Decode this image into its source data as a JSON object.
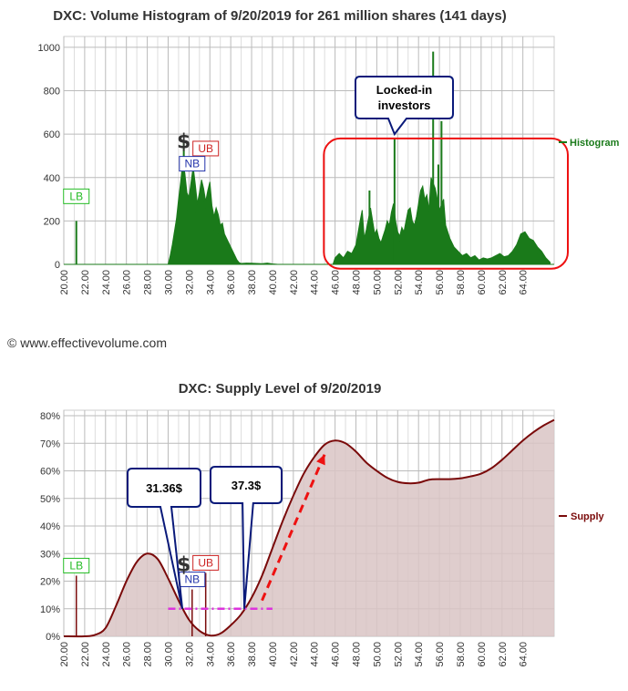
{
  "copyright": "© www.effectivevolume.com",
  "colors": {
    "histogram": "#1a7a1a",
    "supply_line": "#7a0a0a",
    "supply_fill": "#d9c4c4",
    "lb": "#22bb22",
    "ub": "#cc2222",
    "nb": "#2233aa",
    "callout_border": "#0a1a7a",
    "red_box": "#ee1111",
    "dashed_arrow": "#ee1111",
    "magenta_line": "#dd33dd",
    "grid": "#bbbbbb"
  },
  "chart_data": [
    {
      "type": "bar",
      "title": "DXC: Volume Histogram of 9/20/2019 for 261 million shares (141 days)",
      "legend": "Histogram",
      "legend_position": "right",
      "xlim": [
        20,
        67
      ],
      "ylim": [
        0,
        1050
      ],
      "x_ticks": [
        "20.00",
        "22.00",
        "24.00",
        "26.00",
        "28.00",
        "30.00",
        "32.00",
        "34.00",
        "36.00",
        "38.00",
        "40.00",
        "42.00",
        "44.00",
        "46.00",
        "48.00",
        "50.00",
        "52.00",
        "54.00",
        "56.00",
        "58.00",
        "60.00",
        "62.00",
        "64.00"
      ],
      "y_ticks": [
        "0",
        "200",
        "400",
        "600",
        "800",
        "1000"
      ],
      "grid": true,
      "spikes": [
        {
          "x": 21.2,
          "y": 200
        },
        {
          "x": 31.5,
          "y": 560
        },
        {
          "x": 51.7,
          "y": 580
        },
        {
          "x": 55.4,
          "y": 980
        },
        {
          "x": 56.2,
          "y": 660
        },
        {
          "x": 55.9,
          "y": 460
        },
        {
          "x": 49.3,
          "y": 340
        }
      ],
      "envelope": [
        [
          30.0,
          0
        ],
        [
          30.2,
          40
        ],
        [
          30.4,
          90
        ],
        [
          30.6,
          150
        ],
        [
          30.8,
          210
        ],
        [
          31.0,
          300
        ],
        [
          31.2,
          380
        ],
        [
          31.4,
          470
        ],
        [
          31.6,
          420
        ],
        [
          31.8,
          330
        ],
        [
          32.0,
          310
        ],
        [
          32.2,
          380
        ],
        [
          32.4,
          450
        ],
        [
          32.6,
          370
        ],
        [
          32.8,
          280
        ],
        [
          33.0,
          330
        ],
        [
          33.2,
          390
        ],
        [
          33.4,
          350
        ],
        [
          33.6,
          290
        ],
        [
          33.8,
          340
        ],
        [
          34.0,
          380
        ],
        [
          34.2,
          270
        ],
        [
          34.4,
          220
        ],
        [
          34.6,
          260
        ],
        [
          34.8,
          230
        ],
        [
          35.0,
          180
        ],
        [
          35.2,
          190
        ],
        [
          35.4,
          140
        ],
        [
          35.6,
          120
        ],
        [
          35.8,
          100
        ],
        [
          36.0,
          80
        ],
        [
          36.2,
          60
        ],
        [
          36.4,
          40
        ],
        [
          36.6,
          20
        ],
        [
          36.8,
          8
        ],
        [
          37.0,
          4
        ],
        [
          37.5,
          6
        ],
        [
          38.0,
          5
        ],
        [
          38.5,
          4
        ],
        [
          39.0,
          3
        ],
        [
          39.5,
          6
        ],
        [
          40.0,
          2
        ],
        [
          40.5,
          0
        ],
        [
          45.8,
          0
        ],
        [
          46.0,
          30
        ],
        [
          46.4,
          50
        ],
        [
          46.8,
          30
        ],
        [
          47.2,
          60
        ],
        [
          47.6,
          50
        ],
        [
          48.0,
          90
        ],
        [
          48.4,
          200
        ],
        [
          48.6,
          250
        ],
        [
          48.8,
          120
        ],
        [
          49.0,
          160
        ],
        [
          49.4,
          260
        ],
        [
          49.6,
          200
        ],
        [
          49.8,
          140
        ],
        [
          50.0,
          160
        ],
        [
          50.2,
          120
        ],
        [
          50.4,
          100
        ],
        [
          50.6,
          130
        ],
        [
          50.8,
          160
        ],
        [
          51.0,
          200
        ],
        [
          51.2,
          180
        ],
        [
          51.4,
          240
        ],
        [
          51.6,
          280
        ],
        [
          51.8,
          200
        ],
        [
          52.0,
          150
        ],
        [
          52.2,
          130
        ],
        [
          52.4,
          170
        ],
        [
          52.6,
          150
        ],
        [
          52.8,
          200
        ],
        [
          53.0,
          250
        ],
        [
          53.2,
          260
        ],
        [
          53.4,
          200
        ],
        [
          53.6,
          180
        ],
        [
          53.8,
          220
        ],
        [
          54.0,
          280
        ],
        [
          54.2,
          340
        ],
        [
          54.4,
          360
        ],
        [
          54.6,
          300
        ],
        [
          54.8,
          320
        ],
        [
          55.0,
          250
        ],
        [
          55.2,
          400
        ],
        [
          55.6,
          350
        ],
        [
          56.0,
          250
        ],
        [
          56.4,
          300
        ],
        [
          56.6,
          180
        ],
        [
          57.0,
          120
        ],
        [
          57.4,
          80
        ],
        [
          57.8,
          60
        ],
        [
          58.2,
          40
        ],
        [
          58.6,
          50
        ],
        [
          59.0,
          30
        ],
        [
          59.4,
          40
        ],
        [
          59.8,
          20
        ],
        [
          60.2,
          30
        ],
        [
          60.6,
          25
        ],
        [
          61.0,
          30
        ],
        [
          61.4,
          40
        ],
        [
          61.8,
          50
        ],
        [
          62.2,
          35
        ],
        [
          62.6,
          40
        ],
        [
          63.0,
          60
        ],
        [
          63.4,
          90
        ],
        [
          63.8,
          140
        ],
        [
          64.2,
          150
        ],
        [
          64.6,
          120
        ],
        [
          65.0,
          110
        ],
        [
          65.4,
          80
        ],
        [
          65.8,
          60
        ],
        [
          66.2,
          30
        ],
        [
          66.6,
          10
        ]
      ],
      "tags": [
        {
          "label": "LB",
          "x": 21.2,
          "y": 280,
          "kind": "lb"
        },
        {
          "label": "UB",
          "x": 33.6,
          "y": 500,
          "kind": "ub"
        },
        {
          "label": "NB",
          "x": 32.3,
          "y": 430,
          "kind": "nb"
        }
      ],
      "dollar": {
        "label": "$",
        "x": 31.5,
        "y": 560
      },
      "callout": {
        "lines": [
          "Locked-in",
          "investors"
        ],
        "anchor_x": 51.7,
        "anchor_y": 600
      },
      "highlight_box": {
        "x_range": [
          45.8,
          67
        ],
        "y_range": [
          -20,
          580
        ]
      }
    },
    {
      "type": "area",
      "title": "DXC: Supply Level of 9/20/2019",
      "legend": "Supply",
      "legend_position": "right",
      "xlim": [
        20,
        67
      ],
      "ylim": [
        0,
        82
      ],
      "x_ticks": [
        "20.00",
        "22.00",
        "24.00",
        "26.00",
        "28.00",
        "30.00",
        "32.00",
        "34.00",
        "36.00",
        "38.00",
        "40.00",
        "42.00",
        "44.00",
        "46.00",
        "48.00",
        "50.00",
        "52.00",
        "54.00",
        "56.00",
        "58.00",
        "60.00",
        "62.00",
        "64.00"
      ],
      "y_ticks": [
        "0%",
        "10%",
        "20%",
        "30%",
        "40%",
        "50%",
        "60%",
        "70%",
        "80%"
      ],
      "grid": true,
      "points": [
        [
          20.0,
          0
        ],
        [
          22.0,
          0
        ],
        [
          23.0,
          0.5
        ],
        [
          24.0,
          3
        ],
        [
          25.0,
          11
        ],
        [
          26.0,
          20
        ],
        [
          27.0,
          27
        ],
        [
          28.0,
          30
        ],
        [
          29.0,
          28
        ],
        [
          30.0,
          21
        ],
        [
          31.0,
          13
        ],
        [
          32.0,
          6
        ],
        [
          33.0,
          2
        ],
        [
          34.0,
          0.3
        ],
        [
          35.0,
          1
        ],
        [
          36.0,
          4
        ],
        [
          37.0,
          8
        ],
        [
          38.0,
          14
        ],
        [
          39.0,
          22
        ],
        [
          40.0,
          32
        ],
        [
          41.0,
          42
        ],
        [
          42.0,
          51
        ],
        [
          43.0,
          59
        ],
        [
          44.0,
          65
        ],
        [
          45.0,
          69.5
        ],
        [
          46.0,
          71
        ],
        [
          47.0,
          70
        ],
        [
          48.0,
          67
        ],
        [
          49.0,
          63
        ],
        [
          50.0,
          60
        ],
        [
          51.0,
          57.5
        ],
        [
          52.0,
          56
        ],
        [
          53.0,
          55.5
        ],
        [
          54.0,
          55.7
        ],
        [
          55.0,
          56.8
        ],
        [
          56.0,
          57
        ],
        [
          57.0,
          57
        ],
        [
          58.0,
          57.3
        ],
        [
          59.0,
          58
        ],
        [
          60.0,
          59
        ],
        [
          61.0,
          61
        ],
        [
          62.0,
          64
        ],
        [
          63.0,
          67.5
        ],
        [
          64.0,
          71
        ],
        [
          65.0,
          74
        ],
        [
          66.0,
          76.5
        ],
        [
          67.0,
          78.5
        ]
      ],
      "tags": [
        {
          "label": "LB",
          "x": 21.2,
          "y": 23,
          "kind": "lb"
        },
        {
          "label": "UB",
          "x": 33.6,
          "y": 24,
          "kind": "ub"
        },
        {
          "label": "NB",
          "x": 32.3,
          "y": 18,
          "kind": "nb"
        }
      ],
      "dollar": {
        "label": "$",
        "x": 31.5,
        "y": 25
      },
      "callouts": [
        {
          "text": "31.36$",
          "anchor_x": 31.36,
          "anchor_y": 10
        },
        {
          "text": "37.3$",
          "anchor_x": 37.3,
          "anchor_y": 10
        }
      ],
      "magenta_level": {
        "x_range": [
          30,
          40
        ],
        "y": 10
      },
      "arrow": {
        "from": [
          39,
          13
        ],
        "to": [
          45,
          66
        ]
      }
    }
  ]
}
